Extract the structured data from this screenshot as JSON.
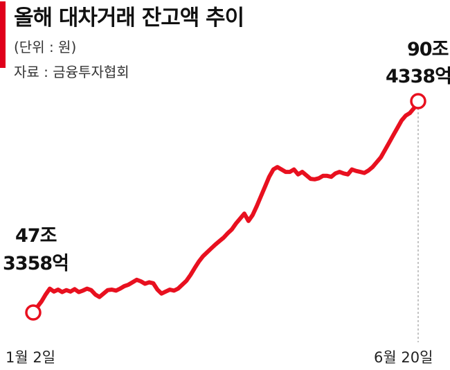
{
  "header": {
    "title": "올해 대차거래 잔고액 추이",
    "unit": "(단위 : 원)",
    "source": "자료 : 금융투자협회"
  },
  "colors": {
    "accent": "#e0001b",
    "line": "#e8101f",
    "text": "#111111"
  },
  "chart_data": {
    "type": "line",
    "title": "올해 대차거래 잔고액 추이",
    "unit": "원",
    "x_labels": [
      "1월 2일",
      "6월 20일"
    ],
    "start": {
      "label": "1월 2일",
      "value_label": [
        "47조",
        "3358억"
      ],
      "value": 473358
    },
    "end": {
      "label": "6월 20일",
      "value_label": [
        "90조",
        "4338억"
      ],
      "value": 904338
    },
    "value_unit": "억 원",
    "series": [
      {
        "values": [
          473358,
          485000,
          496000,
          510000,
          522000,
          516000,
          520000,
          515000,
          519000,
          516000,
          521000,
          515000,
          518000,
          522000,
          519000,
          510000,
          505000,
          512000,
          519000,
          520000,
          518000,
          522000,
          527000,
          530000,
          535000,
          540000,
          537000,
          532000,
          535000,
          533000,
          520000,
          512000,
          516000,
          520000,
          518000,
          522000,
          530000,
          538000,
          550000,
          564000,
          577000,
          588000,
          596000,
          604000,
          612000,
          619000,
          626000,
          635000,
          643000,
          655000,
          665000,
          675000,
          660000,
          672000,
          690000,
          710000,
          730000,
          750000,
          765000,
          770000,
          765000,
          760000,
          760000,
          765000,
          755000,
          760000,
          753000,
          746000,
          745000,
          747000,
          752000,
          752000,
          750000,
          757000,
          760000,
          757000,
          755000,
          765000,
          762000,
          760000,
          758000,
          763000,
          770000,
          780000,
          790000,
          805000,
          820000,
          835000,
          850000,
          865000,
          875000,
          880000,
          890000,
          904338
        ]
      }
    ]
  }
}
